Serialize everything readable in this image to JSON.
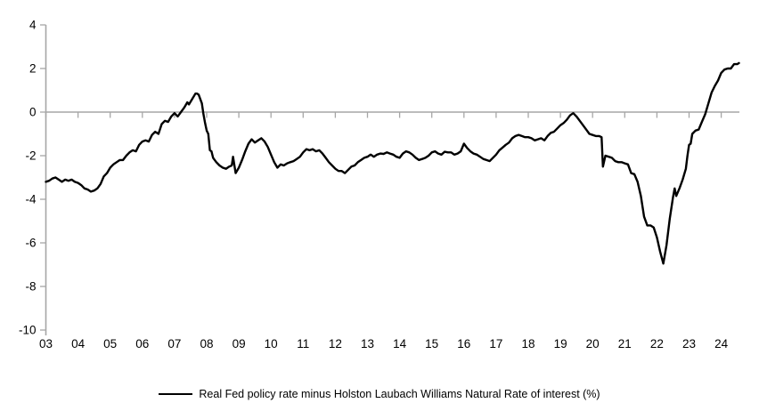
{
  "figure": {
    "background": "#ffffff",
    "axis_color": "#a6a6a6",
    "series_color": "#000000",
    "text_color": "#000000"
  },
  "chart_data": {
    "type": "line",
    "title": "",
    "xlabel": "",
    "ylabel": "",
    "grid": "zero-line-only",
    "legend_position": "bottom-center",
    "ylim": [
      -10,
      4
    ],
    "xlim": [
      3,
      24.7
    ],
    "y_ticks": [
      4,
      2,
      0,
      -2,
      -4,
      -6,
      -8,
      -10
    ],
    "y_tick_labels": [
      "4",
      "2",
      "0",
      "-2",
      "-4",
      "-6",
      "-8",
      "-10"
    ],
    "x_ticks": [
      3,
      4,
      5,
      6,
      7,
      8,
      9,
      10,
      11,
      12,
      13,
      14,
      15,
      16,
      17,
      18,
      19,
      20,
      21,
      22,
      23,
      24
    ],
    "x_tick_labels": [
      "03",
      "04",
      "05",
      "06",
      "07",
      "08",
      "09",
      "10",
      "11",
      "12",
      "13",
      "14",
      "15",
      "16",
      "17",
      "18",
      "19",
      "20",
      "21",
      "22",
      "23",
      "24"
    ],
    "series": [
      {
        "name": "Real Fed policy rate minus Holston Laubach Williams Natural Rate of interest (%)",
        "x": [
          3.0,
          3.1,
          3.2,
          3.3,
          3.4,
          3.5,
          3.6,
          3.7,
          3.8,
          3.9,
          4.0,
          4.1,
          4.2,
          4.3,
          4.4,
          4.5,
          4.6,
          4.7,
          4.8,
          4.9,
          5.0,
          5.1,
          5.2,
          5.3,
          5.4,
          5.5,
          5.6,
          5.7,
          5.8,
          5.9,
          6.0,
          6.1,
          6.2,
          6.3,
          6.4,
          6.5,
          6.6,
          6.7,
          6.8,
          6.9,
          7.0,
          7.1,
          7.2,
          7.3,
          7.4,
          7.45,
          7.55,
          7.65,
          7.7,
          7.75,
          7.85,
          7.9,
          7.95,
          8.0,
          8.05,
          8.1,
          8.15,
          8.2,
          8.3,
          8.4,
          8.5,
          8.6,
          8.7,
          8.78,
          8.82,
          8.9,
          9.0,
          9.1,
          9.2,
          9.3,
          9.4,
          9.5,
          9.6,
          9.7,
          9.8,
          9.9,
          10.0,
          10.1,
          10.2,
          10.3,
          10.4,
          10.5,
          10.6,
          10.7,
          10.8,
          10.9,
          11.0,
          11.1,
          11.2,
          11.3,
          11.4,
          11.5,
          11.6,
          11.7,
          11.8,
          11.9,
          12.0,
          12.1,
          12.2,
          12.3,
          12.4,
          12.5,
          12.6,
          12.7,
          12.8,
          12.9,
          13.0,
          13.1,
          13.2,
          13.3,
          13.4,
          13.5,
          13.6,
          13.7,
          13.8,
          13.9,
          14.0,
          14.1,
          14.2,
          14.3,
          14.4,
          14.5,
          14.6,
          14.7,
          14.8,
          14.9,
          15.0,
          15.1,
          15.2,
          15.3,
          15.4,
          15.5,
          15.6,
          15.7,
          15.8,
          15.9,
          16.0,
          16.1,
          16.2,
          16.3,
          16.4,
          16.5,
          16.6,
          16.7,
          16.8,
          16.9,
          17.0,
          17.1,
          17.2,
          17.3,
          17.4,
          17.5,
          17.6,
          17.7,
          17.8,
          17.9,
          18.0,
          18.1,
          18.2,
          18.3,
          18.4,
          18.5,
          18.6,
          18.7,
          18.8,
          18.9,
          19.0,
          19.1,
          19.2,
          19.3,
          19.4,
          19.5,
          19.6,
          19.7,
          19.8,
          19.9,
          20.0,
          20.1,
          20.2,
          20.28,
          20.32,
          20.4,
          20.5,
          20.6,
          20.7,
          20.8,
          20.9,
          21.0,
          21.1,
          21.2,
          21.3,
          21.4,
          21.5,
          21.6,
          21.7,
          21.8,
          21.9,
          22.0,
          22.1,
          22.2,
          22.3,
          22.4,
          22.5,
          22.55,
          22.6,
          22.7,
          22.8,
          22.9,
          22.95,
          23.0,
          23.05,
          23.1,
          23.2,
          23.3,
          23.4,
          23.5,
          23.6,
          23.7,
          23.8,
          23.9,
          24.0,
          24.1,
          24.2,
          24.3,
          24.4,
          24.5,
          24.55
        ],
        "values": [
          -3.2,
          -3.15,
          -3.05,
          -3.0,
          -3.1,
          -3.2,
          -3.1,
          -3.15,
          -3.1,
          -3.2,
          -3.25,
          -3.35,
          -3.5,
          -3.55,
          -3.65,
          -3.6,
          -3.5,
          -3.3,
          -2.95,
          -2.8,
          -2.55,
          -2.4,
          -2.3,
          -2.2,
          -2.2,
          -2.0,
          -1.85,
          -1.75,
          -1.8,
          -1.5,
          -1.35,
          -1.3,
          -1.35,
          -1.05,
          -0.9,
          -1.0,
          -0.55,
          -0.4,
          -0.45,
          -0.2,
          -0.05,
          -0.2,
          0.0,
          0.2,
          0.45,
          0.35,
          0.6,
          0.85,
          0.85,
          0.8,
          0.4,
          -0.1,
          -0.5,
          -0.85,
          -1.0,
          -1.75,
          -1.8,
          -2.1,
          -2.3,
          -2.45,
          -2.55,
          -2.6,
          -2.5,
          -2.45,
          -2.05,
          -2.8,
          -2.55,
          -2.2,
          -1.8,
          -1.45,
          -1.25,
          -1.4,
          -1.3,
          -1.2,
          -1.35,
          -1.6,
          -1.95,
          -2.3,
          -2.55,
          -2.4,
          -2.45,
          -2.35,
          -2.3,
          -2.25,
          -2.15,
          -2.05,
          -1.85,
          -1.7,
          -1.75,
          -1.7,
          -1.8,
          -1.75,
          -1.9,
          -2.1,
          -2.3,
          -2.45,
          -2.6,
          -2.7,
          -2.7,
          -2.8,
          -2.65,
          -2.5,
          -2.45,
          -2.3,
          -2.2,
          -2.1,
          -2.05,
          -1.95,
          -2.05,
          -1.95,
          -1.9,
          -1.92,
          -1.85,
          -1.9,
          -1.95,
          -2.05,
          -2.1,
          -1.9,
          -1.8,
          -1.85,
          -1.95,
          -2.1,
          -2.2,
          -2.15,
          -2.1,
          -2.0,
          -1.85,
          -1.8,
          -1.9,
          -1.95,
          -1.82,
          -1.85,
          -1.85,
          -1.95,
          -1.9,
          -1.8,
          -1.45,
          -1.65,
          -1.8,
          -1.9,
          -1.95,
          -2.05,
          -2.15,
          -2.2,
          -2.25,
          -2.1,
          -1.95,
          -1.75,
          -1.63,
          -1.5,
          -1.4,
          -1.2,
          -1.1,
          -1.05,
          -1.1,
          -1.15,
          -1.15,
          -1.2,
          -1.3,
          -1.25,
          -1.2,
          -1.3,
          -1.1,
          -0.95,
          -0.9,
          -0.75,
          -0.6,
          -0.5,
          -0.35,
          -0.15,
          -0.05,
          -0.2,
          -0.4,
          -0.6,
          -0.8,
          -1.0,
          -1.05,
          -1.1,
          -1.1,
          -1.15,
          -2.5,
          -2.0,
          -2.05,
          -2.1,
          -2.25,
          -2.3,
          -2.3,
          -2.35,
          -2.4,
          -2.8,
          -2.85,
          -3.2,
          -3.85,
          -4.8,
          -5.2,
          -5.2,
          -5.3,
          -5.75,
          -6.4,
          -6.95,
          -6.1,
          -4.9,
          -3.9,
          -3.5,
          -3.85,
          -3.5,
          -3.1,
          -2.6,
          -2.0,
          -1.5,
          -1.45,
          -1.0,
          -0.85,
          -0.8,
          -0.45,
          -0.1,
          0.4,
          0.9,
          1.2,
          1.45,
          1.8,
          1.95,
          2.0,
          2.0,
          2.2,
          2.2,
          2.25
        ]
      }
    ]
  }
}
